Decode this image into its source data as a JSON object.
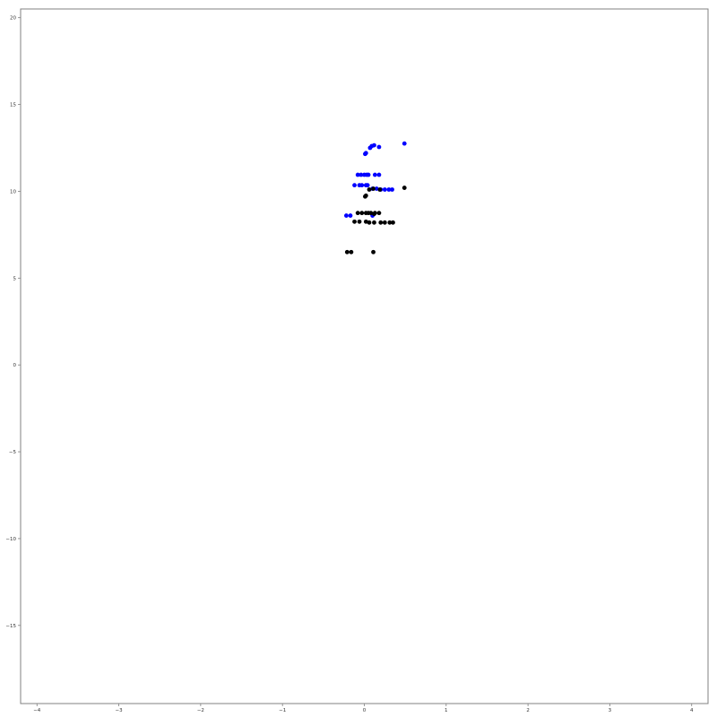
{
  "colors": {
    "blue": "#0000ff",
    "black": "#000000",
    "axis": "#808080"
  },
  "chart_data": {
    "type": "scatter",
    "title": "",
    "xlabel": "",
    "ylabel": "",
    "xlim": [
      -4.2,
      4.2
    ],
    "ylim": [
      -19.5,
      20.5
    ],
    "grid": false,
    "legend": "none",
    "x_ticks": [
      -4,
      -3,
      -2,
      -1,
      0,
      1,
      2,
      3,
      4
    ],
    "y_ticks": [
      -15,
      -10,
      -5,
      0,
      5,
      10,
      15,
      20
    ],
    "x_tick_labels": [
      "−4",
      "−3",
      "−2",
      "−1",
      "0",
      "1",
      "2",
      "3",
      "4"
    ],
    "y_tick_labels": [
      "−15",
      "−10",
      "−5",
      "0",
      "5",
      "10",
      "15",
      "20"
    ],
    "series": [
      {
        "color": "#0000ff",
        "points": [
          [
            0.07,
            12.5
          ],
          [
            0.09,
            12.6
          ],
          [
            0.12,
            12.65
          ],
          [
            0.02,
            12.2
          ],
          [
            0.01,
            12.15
          ],
          [
            0.18,
            12.55
          ],
          [
            0.49,
            12.75
          ],
          [
            -0.08,
            10.95
          ],
          [
            -0.04,
            10.95
          ],
          [
            0.0,
            10.95
          ],
          [
            0.03,
            10.95
          ],
          [
            0.05,
            10.95
          ],
          [
            0.13,
            10.95
          ],
          [
            0.18,
            10.95
          ],
          [
            -0.12,
            10.35
          ],
          [
            -0.06,
            10.35
          ],
          [
            -0.03,
            10.35
          ],
          [
            0.02,
            10.35
          ],
          [
            0.04,
            10.35
          ],
          [
            0.1,
            10.15
          ],
          [
            0.15,
            10.15
          ],
          [
            0.2,
            10.1
          ],
          [
            0.25,
            10.1
          ],
          [
            0.3,
            10.1
          ],
          [
            0.34,
            10.1
          ],
          [
            -0.22,
            8.6
          ],
          [
            -0.17,
            8.6
          ],
          [
            0.1,
            8.6
          ]
        ]
      },
      {
        "color": "#000000",
        "points": [
          [
            0.06,
            10.1
          ],
          [
            0.11,
            10.15
          ],
          [
            0.19,
            10.1
          ],
          [
            0.49,
            10.2
          ],
          [
            0.02,
            9.75
          ],
          [
            0.01,
            9.7
          ],
          [
            -0.08,
            8.75
          ],
          [
            -0.03,
            8.75
          ],
          [
            0.02,
            8.75
          ],
          [
            0.05,
            8.75
          ],
          [
            0.08,
            8.75
          ],
          [
            0.13,
            8.75
          ],
          [
            0.18,
            8.75
          ],
          [
            0.12,
            8.7
          ],
          [
            -0.12,
            8.25
          ],
          [
            -0.06,
            8.25
          ],
          [
            0.02,
            8.25
          ],
          [
            0.06,
            8.2
          ],
          [
            0.12,
            8.2
          ],
          [
            0.2,
            8.2
          ],
          [
            0.25,
            8.2
          ],
          [
            0.31,
            8.2
          ],
          [
            0.35,
            8.2
          ],
          [
            -0.21,
            6.5
          ],
          [
            -0.16,
            6.5
          ],
          [
            0.11,
            6.5
          ]
        ]
      }
    ]
  }
}
